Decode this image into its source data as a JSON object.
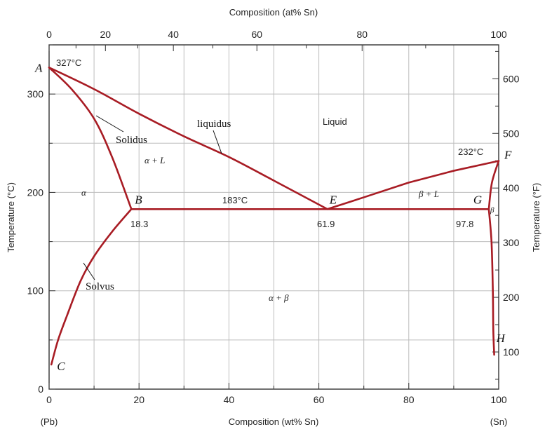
{
  "chart_data": {
    "type": "line",
    "title": "",
    "xlabel_bottom": "Composition (wt% Sn)",
    "xlabel_top": "Composition (at% Sn)",
    "ylabel_left": "Temperature (°C)",
    "ylabel_right": "Temperature (°F)",
    "xlim": [
      0,
      100
    ],
    "ylim": [
      0,
      350
    ],
    "grid": true,
    "x_ticks_bottom": [
      0,
      20,
      40,
      60,
      80,
      100
    ],
    "x_ticks_top": [
      0,
      20,
      40,
      60,
      80,
      100
    ],
    "y_ticks_left": [
      0,
      100,
      200,
      300
    ],
    "y_ticks_right_F": [
      100,
      200,
      300,
      400,
      500,
      600
    ],
    "endpoint_labels": {
      "left": "(Pb)",
      "right": "(Sn)"
    },
    "series": [
      {
        "name": "liquidus",
        "x": [
          0,
          10,
          20,
          30,
          40,
          50,
          61.9,
          70,
          80,
          90,
          100
        ],
        "y": [
          327,
          305,
          280,
          257,
          236,
          212,
          183,
          195,
          210,
          222,
          232
        ]
      },
      {
        "name": "Solidus",
        "x": [
          0,
          5,
          10,
          14,
          18.3
        ],
        "y": [
          327,
          305,
          275,
          236,
          183
        ]
      },
      {
        "name": "Solvus",
        "x": [
          18.3,
          14,
          10,
          7,
          4,
          2,
          0.5
        ],
        "y": [
          183,
          160,
          135,
          110,
          75,
          50,
          25
        ]
      },
      {
        "name": "eutectic",
        "x": [
          18.3,
          61.9,
          97.8
        ],
        "y": [
          183,
          183,
          183
        ]
      },
      {
        "name": "beta-solidus",
        "x": [
          97.8,
          98.5,
          100
        ],
        "y": [
          183,
          210,
          232
        ]
      },
      {
        "name": "beta-solvus",
        "x": [
          97.8,
          98.4,
          98.7,
          98.8,
          99
        ],
        "y": [
          183,
          150,
          100,
          60,
          35
        ]
      }
    ],
    "point_labels": [
      {
        "label": "A",
        "x": 0,
        "y": 327
      },
      {
        "label": "B",
        "x": 18.3,
        "y": 183
      },
      {
        "label": "C",
        "x": 0.5,
        "y": 25
      },
      {
        "label": "E",
        "x": 61.9,
        "y": 183
      },
      {
        "label": "F",
        "x": 100,
        "y": 232
      },
      {
        "label": "G",
        "x": 97.8,
        "y": 183
      },
      {
        "label": "H",
        "x": 99,
        "y": 35
      }
    ],
    "annotations": {
      "t_pb": "327°C",
      "t_sn": "232°C",
      "t_eutectic": "183°C",
      "c_b": "18.3",
      "c_e": "61.9",
      "c_g": "97.8",
      "liquidus": "liquidus",
      "solidus": "Solidus",
      "solvus": "Solvus"
    },
    "phase_regions": {
      "liquid": "Liquid",
      "alpha_L": "α + L",
      "alpha": "α",
      "beta_L": "β + L",
      "beta": "β",
      "alpha_beta": "α + β"
    }
  }
}
